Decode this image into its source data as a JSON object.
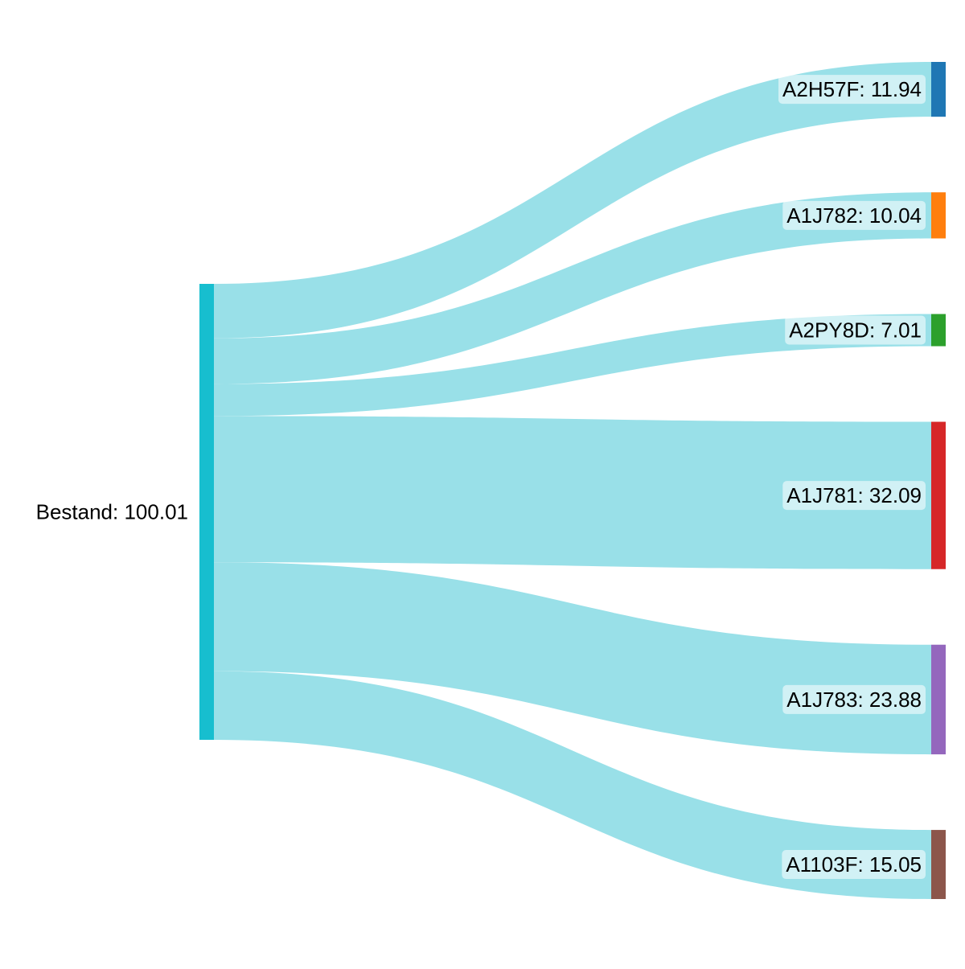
{
  "chart_data": {
    "type": "sankey",
    "source": {
      "name": "Bestand",
      "value": 100.01,
      "color": "#17becf"
    },
    "targets": [
      {
        "name": "A2H57F",
        "value": 11.94,
        "color": "#1f77b4"
      },
      {
        "name": "A1J782",
        "value": 10.04,
        "color": "#ff7f0e"
      },
      {
        "name": "A2PY8D",
        "value": 7.01,
        "color": "#2ca02c"
      },
      {
        "name": "A1J781",
        "value": 32.09,
        "color": "#d62728"
      },
      {
        "name": "A1J783",
        "value": 23.88,
        "color": "#9467bd"
      },
      {
        "name": "A1103F",
        "value": 15.05,
        "color": "#8c564b"
      }
    ],
    "link_color": "#99e0e8",
    "label_separator": ": "
  }
}
